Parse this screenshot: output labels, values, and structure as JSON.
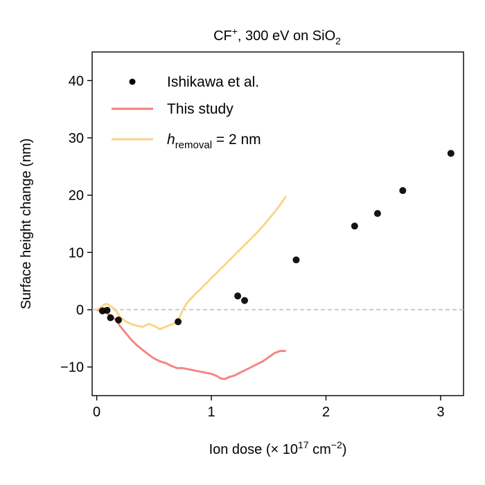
{
  "chart_data": {
    "type": "scatter",
    "title": "CF⁺, 300 eV on SiO₂",
    "title_parts": {
      "pre": "CF",
      "sup": "+",
      "mid": ", 300 eV on SiO",
      "sub": "2"
    },
    "xlabel": "Ion dose (× 10¹⁷ cm⁻²)",
    "xlabel_parts": {
      "pre": "Ion dose (× 10",
      "sup1": "17",
      "mid": " cm",
      "sup2": "−2",
      "post": ")"
    },
    "ylabel": "Surface height change (nm)",
    "xlim": [
      -0.04,
      3.2
    ],
    "ylim": [
      -15,
      45
    ],
    "xticks": [
      0,
      1,
      2,
      3
    ],
    "yticks": [
      -10,
      0,
      10,
      20,
      30,
      40
    ],
    "xtick_labels": [
      "0",
      "1",
      "2",
      "3"
    ],
    "ytick_labels": [
      "−10",
      "0",
      "10",
      "20",
      "30",
      "40"
    ],
    "grid": false,
    "reference_line": {
      "y": 0,
      "style": "dashed",
      "color": "#bbbbbb"
    },
    "legend": {
      "placement": "top-left",
      "entries": [
        {
          "label": "Ishikawa et al.",
          "marker": "dot",
          "color": "#000000"
        },
        {
          "label": "This study",
          "marker": "line",
          "color": "#f47f7f"
        },
        {
          "label": "h_removal = 2 nm",
          "label_parts": {
            "italic": "h",
            "sub": "removal",
            "post": " = 2 nm"
          },
          "marker": "line",
          "color": "#fdd282"
        }
      ]
    },
    "series": [
      {
        "name": "This study",
        "kind": "line",
        "color": "#f47f7f",
        "x": [
          0,
          0.03,
          0.06,
          0.09,
          0.12,
          0.15,
          0.18,
          0.2,
          0.25,
          0.3,
          0.35,
          0.4,
          0.45,
          0.5,
          0.55,
          0.6,
          0.65,
          0.7,
          0.75,
          0.8,
          0.85,
          0.9,
          0.95,
          1.0,
          1.05,
          1.08,
          1.12,
          1.15,
          1.2,
          1.25,
          1.3,
          1.35,
          1.4,
          1.45,
          1.5,
          1.55,
          1.6,
          1.65
        ],
        "y": [
          0,
          -0.2,
          -0.4,
          -0.6,
          -1.0,
          -1.5,
          -2.0,
          -2.8,
          -4.0,
          -5.2,
          -6.2,
          -7.0,
          -7.8,
          -8.5,
          -9.0,
          -9.3,
          -9.8,
          -10.2,
          -10.2,
          -10.4,
          -10.6,
          -10.8,
          -11.0,
          -11.2,
          -11.6,
          -12.0,
          -12.1,
          -11.8,
          -11.5,
          -11.0,
          -10.5,
          -10.0,
          -9.5,
          -9.0,
          -8.3,
          -7.6,
          -7.2,
          -7.2
        ]
      },
      {
        "name": "h_removal = 2 nm",
        "kind": "line",
        "color": "#fdd282",
        "x": [
          0,
          0.03,
          0.06,
          0.08,
          0.1,
          0.12,
          0.15,
          0.18,
          0.2,
          0.25,
          0.3,
          0.35,
          0.4,
          0.45,
          0.5,
          0.55,
          0.6,
          0.65,
          0.7,
          0.72,
          0.75,
          0.8,
          0.85,
          0.9,
          0.95,
          1.0,
          1.05,
          1.1,
          1.15,
          1.2,
          1.25,
          1.3,
          1.35,
          1.4,
          1.45,
          1.5,
          1.55,
          1.6,
          1.65
        ],
        "y": [
          0,
          0.3,
          0.8,
          1.0,
          0.9,
          0.6,
          0.2,
          -0.5,
          -1.2,
          -2.0,
          -2.5,
          -2.8,
          -3.0,
          -2.5,
          -2.8,
          -3.4,
          -3.0,
          -2.6,
          -2.2,
          -1.5,
          0.0,
          1.5,
          2.5,
          3.5,
          4.5,
          5.5,
          6.5,
          7.5,
          8.5,
          9.5,
          10.5,
          11.5,
          12.5,
          13.5,
          14.6,
          15.8,
          17.0,
          18.3,
          19.8
        ]
      },
      {
        "name": "Ishikawa et al.",
        "kind": "scatter",
        "color": "#000000",
        "x": [
          0.05,
          0.09,
          0.12,
          0.19,
          0.71,
          1.23,
          1.29,
          1.74,
          2.25,
          2.45,
          2.67,
          3.09
        ],
        "y": [
          -0.2,
          -0.1,
          -1.4,
          -1.8,
          -2.1,
          2.4,
          1.6,
          8.7,
          14.6,
          16.8,
          20.8,
          27.3
        ]
      }
    ]
  }
}
